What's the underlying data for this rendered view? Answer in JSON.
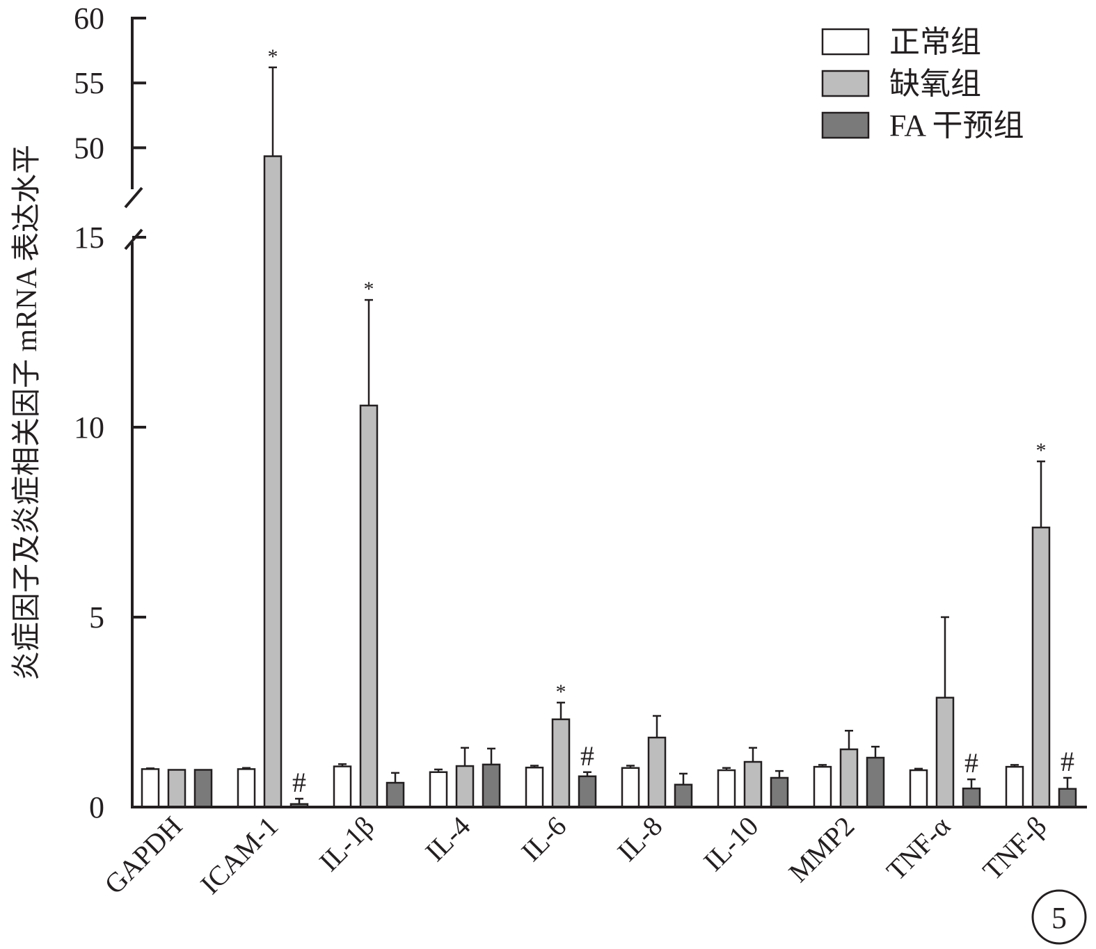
{
  "chart_data": {
    "type": "bar",
    "y_label": "炎症因子及炎症相关因子 mRNA 表达水平",
    "categories": [
      "GAPDH",
      "ICAM-1",
      "IL-1β",
      "IL-4",
      "IL-6",
      "IL-8",
      "IL-10",
      "MMP2",
      "TNF-α",
      "TNF-β"
    ],
    "series": [
      {
        "name": "正常组",
        "color": "#ffffff",
        "values": [
          1.0,
          1.0,
          1.07,
          0.92,
          1.04,
          1.03,
          0.97,
          1.06,
          0.97,
          1.06
        ],
        "errors": [
          0.02,
          0.03,
          0.06,
          0.07,
          0.05,
          0.06,
          0.06,
          0.05,
          0.04,
          0.05
        ],
        "marks": [
          null,
          null,
          null,
          null,
          null,
          null,
          null,
          null,
          null,
          null
        ]
      },
      {
        "name": "缺氧组",
        "color": "#bdbdbd",
        "values": [
          0.98,
          49.35,
          10.57,
          1.08,
          2.31,
          1.83,
          1.19,
          1.52,
          2.88,
          7.36
        ],
        "errors": [
          0.0,
          6.85,
          2.78,
          0.48,
          0.44,
          0.57,
          0.37,
          0.49,
          2.12,
          1.74
        ],
        "marks": [
          null,
          "*",
          "*",
          null,
          "*",
          null,
          null,
          null,
          null,
          "*"
        ]
      },
      {
        "name": "FA 干预组",
        "color": "#7a7a7a",
        "values": [
          0.98,
          0.08,
          0.64,
          1.12,
          0.81,
          0.59,
          0.77,
          1.3,
          0.49,
          0.48
        ],
        "errors": [
          0.0,
          0.14,
          0.26,
          0.42,
          0.11,
          0.29,
          0.18,
          0.29,
          0.24,
          0.29
        ],
        "marks": [
          null,
          "#",
          null,
          null,
          "#",
          null,
          null,
          null,
          "#",
          "#"
        ]
      }
    ],
    "y_segments": [
      {
        "ylim": [
          0,
          15
        ],
        "yticks": [
          0,
          5,
          10,
          15
        ]
      },
      {
        "ylim": [
          46,
          60
        ],
        "yticks": [
          50,
          55,
          60
        ]
      }
    ],
    "panel_label": "5"
  }
}
